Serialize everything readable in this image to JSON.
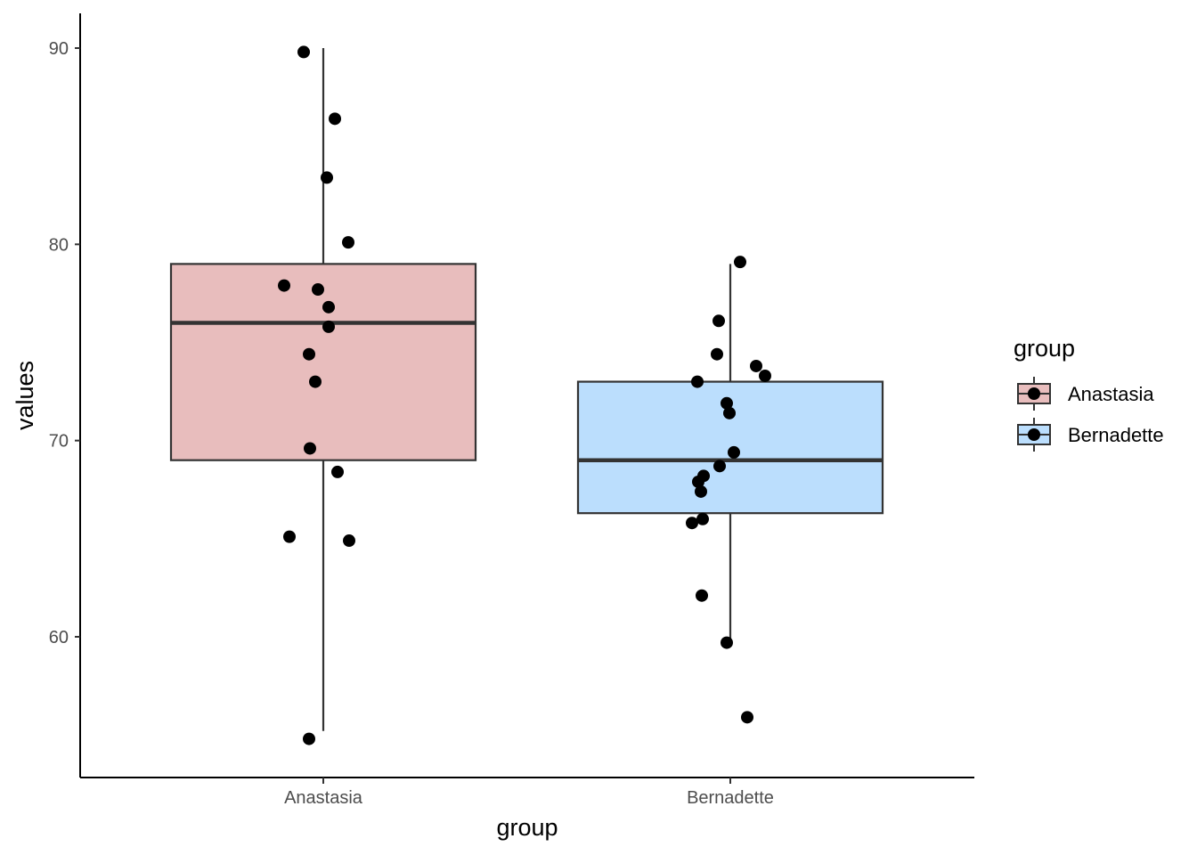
{
  "chart_data": {
    "type": "box",
    "xlabel": "group",
    "ylabel": "values",
    "ylim": [
      53,
      92
    ],
    "y_ticks": [
      60,
      70,
      80,
      90
    ],
    "categories": [
      "Anastasia",
      "Bernadette"
    ],
    "grid": false,
    "legend": {
      "title": "group",
      "position": "right",
      "entries": [
        "Anastasia",
        "Bernadette"
      ]
    },
    "series": [
      {
        "name": "Anastasia",
        "color": "#e8bdbd",
        "box": {
          "lower_whisker": 55.2,
          "q1": 69.0,
          "median": 76.0,
          "q3": 79.0,
          "upper_whisker": 90.0
        },
        "points": [
          89.8,
          86.4,
          83.4,
          80.1,
          77.9,
          77.7,
          76.8,
          75.8,
          74.4,
          73.0,
          69.6,
          68.4,
          65.1,
          64.9,
          54.8
        ]
      },
      {
        "name": "Bernadette",
        "color": "#bbdefd",
        "box": {
          "lower_whisker": 59.7,
          "q1": 66.3,
          "median": 69.0,
          "q3": 73.0,
          "upper_whisker": 79.0
        },
        "points": [
          79.1,
          76.1,
          74.4,
          73.8,
          73.3,
          73.0,
          71.9,
          71.4,
          69.4,
          68.7,
          68.2,
          67.9,
          67.4,
          66.0,
          65.8,
          62.1,
          59.7,
          55.9
        ]
      }
    ]
  }
}
